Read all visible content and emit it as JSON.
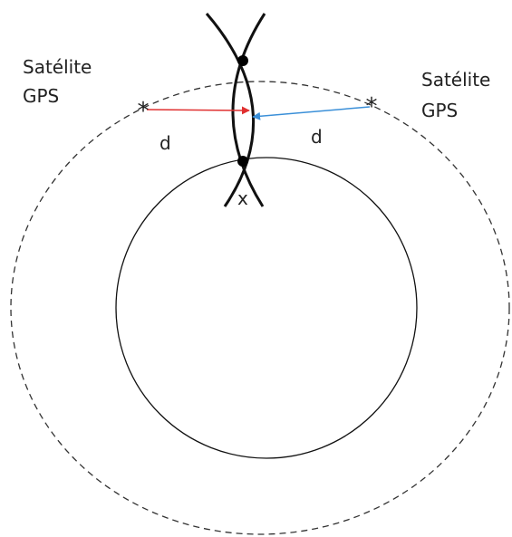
{
  "satellites": [
    {
      "lines": [
        "Satélite",
        "GPS"
      ],
      "distance": "d"
    },
    {
      "lines": [
        "Satélite",
        "GPS"
      ],
      "distance": "d"
    }
  ],
  "point": "x"
}
